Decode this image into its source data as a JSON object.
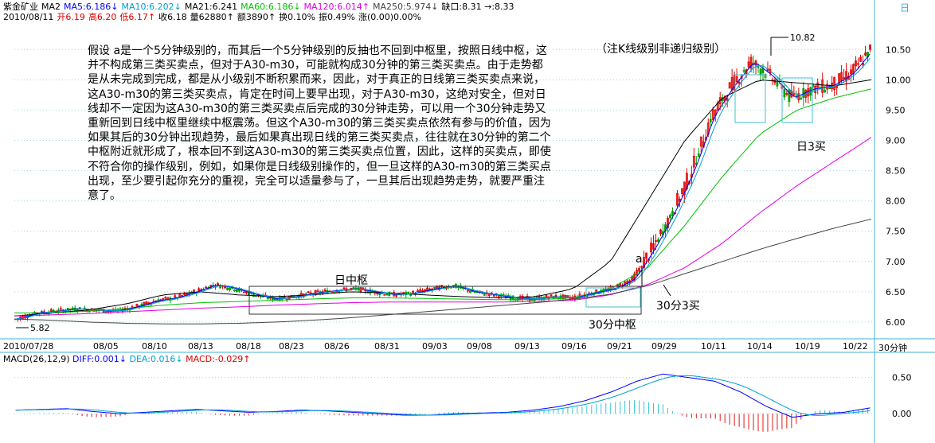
{
  "header": {
    "stock_name": "紫金矿业",
    "ma_label": "MA2",
    "ma5": "MA5:6.186↓",
    "ma10": "MA10:6.202↓",
    "ma21": "MA21:6.241",
    "ma60": "MA60:6.186↓",
    "ma120": "MA120:6.014↑",
    "ma250": "MA250:5.974↓",
    "gap": "缺口:8.31 →:8.33",
    "date": "2010/08/11",
    "open": "开6.19",
    "high": "高6.20",
    "low": "低6.17↑",
    "close": "收6.18",
    "volume": "量62880↑",
    "amount": "额3890↑",
    "turnover": "换0.10%",
    "amplitude": "振0.49%",
    "change": "涨(0.00)0.00%"
  },
  "notes": {
    "main_text": "假设 a是一个5分钟级别的，而其后一个5分钟级别的反抽也不回到中枢里，按照日线中枢，这并不构成第三类买卖点，但对于A30-m30，可能就构成30分钟的第三类买卖点。由于走势都是从未完成到完成，都是从小级别不断积累而来，因此，对于真正的日线第三类买卖点来说，这A30-m30的第三类买卖点，肯定在时间上要早出现，对于A30-m30，这绝对安全，但对日线却不一定因为这A30-m30的第三类买卖点后完成的30分钟走势，可以用一个30分钟走势又重新回到日线中枢里继续中枢震荡。但这个A30-m30的第三类买卖点依然有参与的价值，因为如果其后的30分钟出现趋势，最后如果真出现日线的第三类买卖点，往往就在30分钟的第二个中枢附近就形成了，根本回不到这A30-m30的第三类买卖点位置，因此，这样的买卖点，即使不符合你的操作级别，例如，如果你是日线级别操作的，但一旦这样的A30-m30的第三类买点出现，至少要引起你充分的重视，完全可以适量参与了，一旦其后出现趋势走势，就要严重注意了。",
    "k_note": "（注K线级别非递归级别）",
    "daily_center": "日中枢",
    "center_30": "30分中枢",
    "buy_30_3": "30分3买",
    "buy_day_3": "日3买",
    "point_a": "a",
    "high_mark": "10.82",
    "low_mark": "5.82",
    "period": "30分钟",
    "corner": "日"
  },
  "macd": {
    "label": "MACD(26,12,9)",
    "diff": "DIFF:0.001↓",
    "dea": "DEA:0.016↓",
    "macd": "MACD:-0.029↑"
  },
  "colors": {
    "ma5": "#0000ff",
    "ma10": "#00a0d0",
    "ma21": "#000000",
    "ma60": "#00c000",
    "ma120": "#e000e0",
    "ma250": "#444444",
    "up": "#e00000",
    "down": "#00a000",
    "grid": "#9fd4e6",
    "axis": "#40b0e0"
  },
  "chart_data": {
    "type": "candlestick",
    "title": "紫金矿业 30分钟",
    "x_ticks": [
      "2010/07/28",
      "08/05",
      "08/10",
      "08/13",
      "08/18",
      "08/23",
      "08/26",
      "08/31",
      "09/03",
      "09/08",
      "09/13",
      "09/16",
      "09/21",
      "09/29",
      "10/11",
      "10/14",
      "10/19",
      "10/22"
    ],
    "y_ticks": [
      "10.50",
      "10.00",
      "9.50",
      "9.00",
      "8.50",
      "8.00",
      "7.50",
      "7.00",
      "6.50",
      "6.00"
    ],
    "ylim": [
      5.75,
      10.95
    ],
    "macd_ticks": [
      "0.50",
      "0.00"
    ],
    "macd_lim": [
      -0.35,
      0.75
    ],
    "close_path": [
      6.05,
      6.15,
      6.18,
      6.22,
      6.2,
      6.18,
      6.25,
      6.35,
      6.4,
      6.5,
      6.62,
      6.55,
      6.45,
      6.38,
      6.42,
      6.48,
      6.52,
      6.55,
      6.5,
      6.45,
      6.48,
      6.55,
      6.6,
      6.5,
      6.45,
      6.4,
      6.38,
      6.42,
      6.4,
      6.48,
      6.55,
      6.7,
      7.2,
      7.8,
      8.5,
      9.4,
      9.9,
      10.3,
      10.05,
      9.7,
      9.85,
      9.9,
      10.1,
      10.5
    ],
    "ma_series": [
      {
        "name": "MA21",
        "values": [
          6.1,
          6.15,
          6.2,
          6.3,
          6.45,
          6.5,
          6.45,
          6.42,
          6.45,
          6.5,
          6.48,
          6.45,
          6.42,
          6.4,
          6.42,
          6.55,
          7.0,
          8.0,
          9.0,
          9.7,
          10.0,
          9.95,
          9.9,
          10.0
        ]
      },
      {
        "name": "MA60",
        "values": [
          6.15,
          6.15,
          6.18,
          6.22,
          6.28,
          6.32,
          6.34,
          6.36,
          6.38,
          6.4,
          6.4,
          6.39,
          6.38,
          6.37,
          6.37,
          6.4,
          6.55,
          6.9,
          7.6,
          8.4,
          9.1,
          9.5,
          9.7,
          9.85
        ]
      },
      {
        "name": "MA120",
        "values": [
          6.1,
          6.12,
          6.14,
          6.17,
          6.2,
          6.23,
          6.25,
          6.28,
          6.3,
          6.32,
          6.33,
          6.33,
          6.33,
          6.33,
          6.34,
          6.36,
          6.45,
          6.62,
          6.9,
          7.3,
          7.8,
          8.25,
          8.65,
          9.05
        ]
      },
      {
        "name": "MA250",
        "values": [
          6.05,
          6.03,
          6.0,
          5.98,
          5.97,
          5.97,
          5.98,
          6.0,
          6.03,
          6.07,
          6.12,
          6.17,
          6.22,
          6.27,
          6.32,
          6.38,
          6.46,
          6.6,
          6.8,
          7.0,
          7.2,
          7.38,
          7.55,
          7.7
        ]
      }
    ],
    "macd_diff": [
      0.05,
      0.06,
      0.07,
      0.03,
      0.0,
      0.02,
      0.04,
      0.06,
      0.04,
      0.02,
      0.03,
      0.05,
      0.04,
      0.02,
      0.0,
      -0.02,
      -0.02,
      0.0,
      0.01,
      0.02,
      0.05,
      0.1,
      0.18,
      0.3,
      0.45,
      0.55,
      0.5,
      0.45,
      0.3,
      0.1,
      -0.05,
      0.0,
      0.02,
      0.08
    ]
  }
}
